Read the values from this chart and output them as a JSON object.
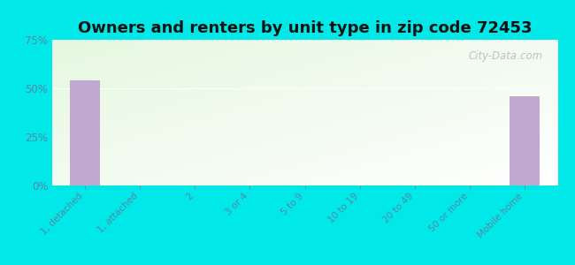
{
  "title": "Owners and renters by unit type in zip code 72453",
  "categories": [
    "1, detached",
    "1, attached",
    "2",
    "3 or 4",
    "5 to 9",
    "10 to 19",
    "20 to 49",
    "50 or more",
    "Mobile home"
  ],
  "values": [
    54.0,
    0,
    0,
    0,
    0,
    0,
    0,
    0,
    46.0
  ],
  "bar_color": "#c0a8d0",
  "background_color": "#00e8e8",
  "ylim": [
    0,
    75
  ],
  "yticks": [
    0,
    25,
    50,
    75
  ],
  "ytick_labels": [
    "0%",
    "25%",
    "50%",
    "75%"
  ],
  "title_fontsize": 13,
  "watermark": "City-Data.com",
  "tick_label_color": "#5588aa",
  "title_color": "#111111"
}
